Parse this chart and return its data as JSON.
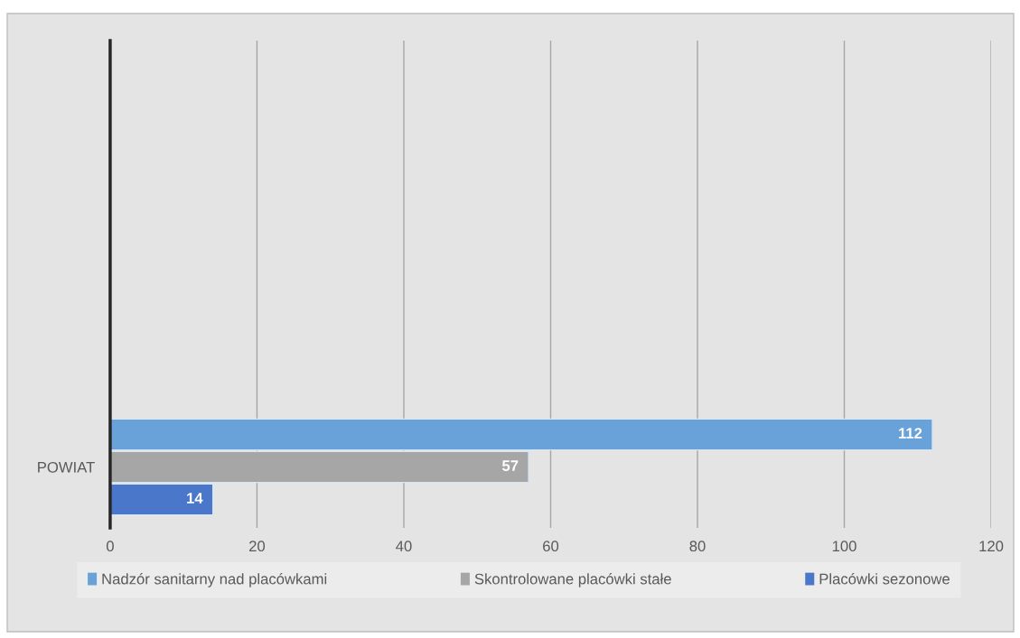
{
  "chart_data": {
    "type": "bar",
    "orientation": "horizontal",
    "categories": [
      null,
      null,
      null,
      "POWIAT"
    ],
    "series": [
      {
        "name": "Nadzór sanitarny nad placówkami",
        "color": "#69a2d9",
        "values": [
          null,
          null,
          null,
          112
        ]
      },
      {
        "name": "Skontrolowane placówki stałe",
        "color": "#a6a6a6",
        "values": [
          null,
          null,
          null,
          57
        ]
      },
      {
        "name": "Placówki sezonowe",
        "color": "#4a77c9",
        "values": [
          null,
          null,
          null,
          14
        ]
      }
    ],
    "xlim": [
      0,
      120
    ],
    "xticks": [
      0,
      20,
      40,
      60,
      80,
      100,
      120
    ],
    "grid": "x",
    "legend": "bottom",
    "data_labels": true
  }
}
